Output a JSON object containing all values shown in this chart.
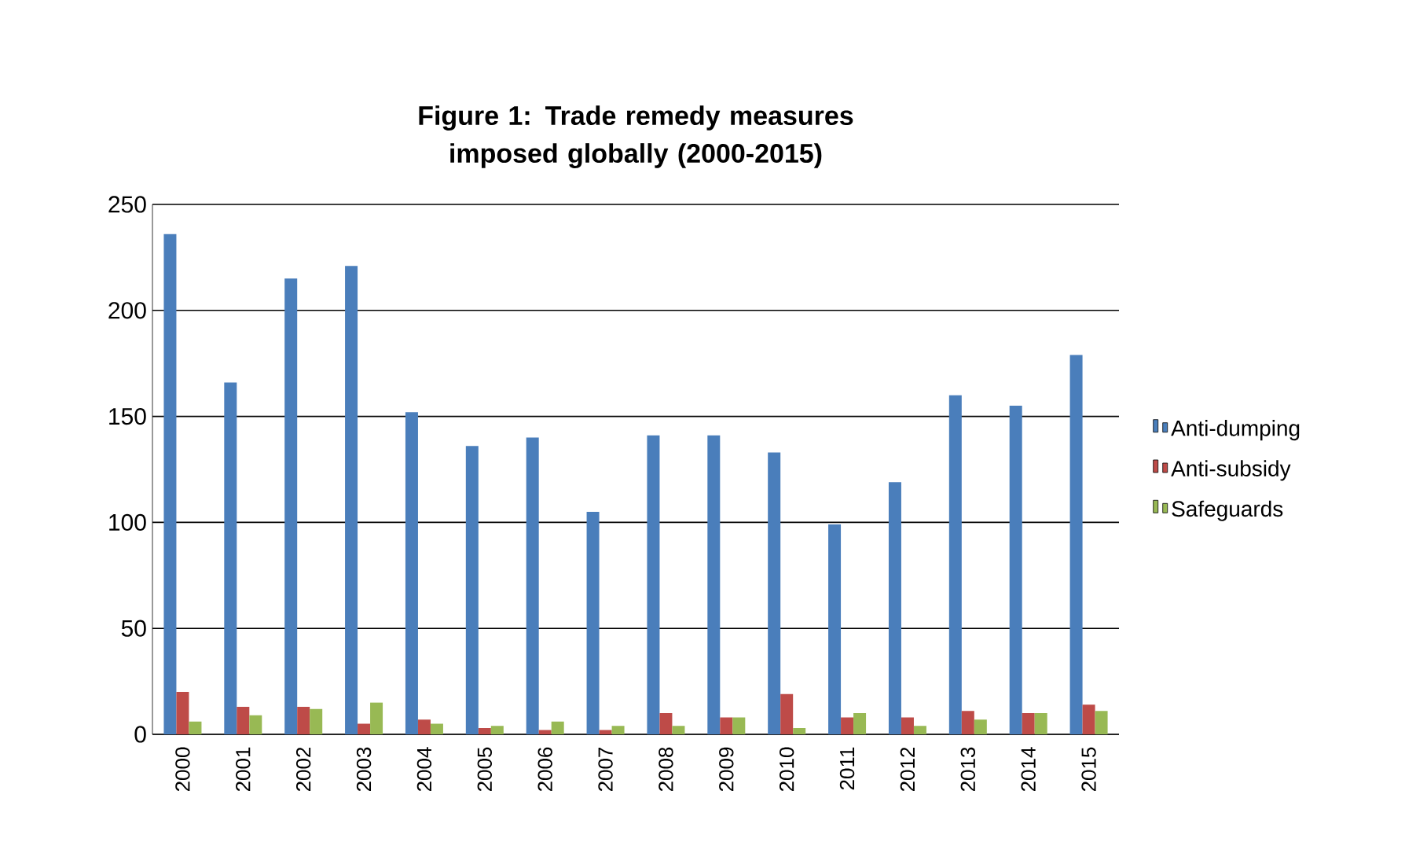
{
  "chart_data": {
    "type": "bar",
    "title": "Figure 1: Trade remedy measures imposed globally (2000-2015)",
    "categories": [
      "2000",
      "2001",
      "2002",
      "2003",
      "2004",
      "2005",
      "2006",
      "2007",
      "2008",
      "2009",
      "2010",
      "2011",
      "2012",
      "2013",
      "2014",
      "2015"
    ],
    "series": [
      {
        "name": "Anti-dumping",
        "color": "#4a7ebb",
        "values": [
          236,
          166,
          215,
          221,
          152,
          136,
          140,
          105,
          141,
          141,
          133,
          99,
          119,
          160,
          155,
          179
        ]
      },
      {
        "name": "Anti-subsidy",
        "color": "#be4b48",
        "values": [
          20,
          13,
          13,
          5,
          7,
          3,
          2,
          2,
          10,
          8,
          19,
          8,
          8,
          11,
          10,
          14
        ]
      },
      {
        "name": "Safeguards",
        "color": "#98b954",
        "values": [
          6,
          9,
          12,
          15,
          5,
          4,
          6,
          4,
          4,
          8,
          3,
          10,
          4,
          7,
          10,
          11
        ]
      }
    ],
    "ylim": [
      0,
      250
    ],
    "yticks": [
      0,
      50,
      100,
      150,
      200,
      250
    ],
    "grid": "y",
    "legend": "right"
  }
}
